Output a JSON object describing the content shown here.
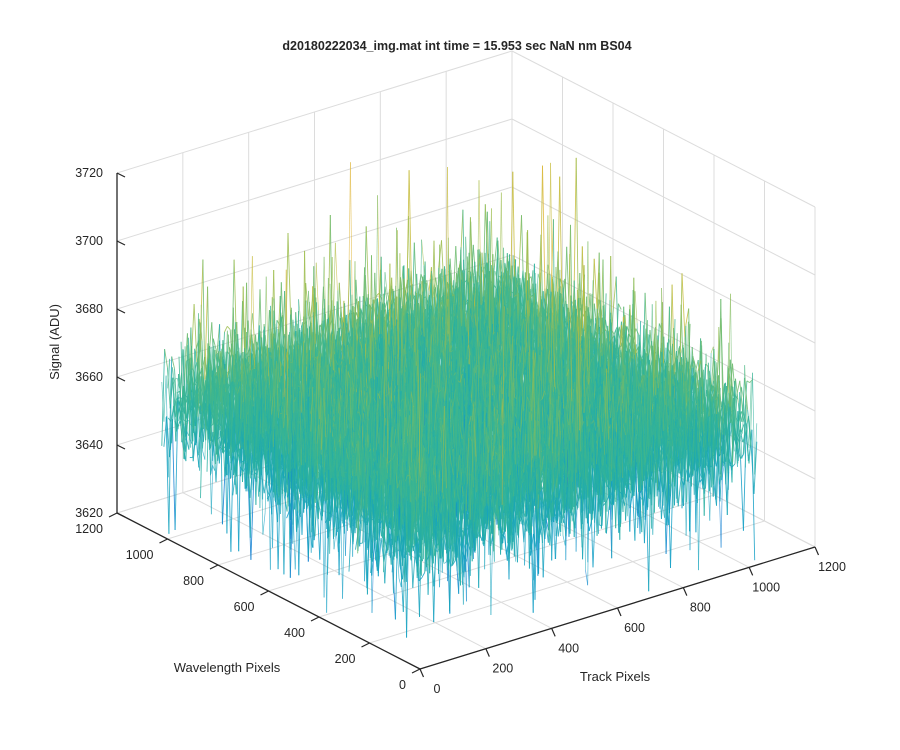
{
  "chart_data": {
    "type": "surface",
    "title": "d20180222034_img.mat int time = 15.953 sec  NaN nm BS04",
    "xlabel": "Track Pixels",
    "ylabel": "Wavelength Pixels",
    "zlabel": "Signal (ADU)",
    "xlim": [
      0,
      1200
    ],
    "ylim": [
      0,
      1200
    ],
    "zlim": [
      3620,
      3720
    ],
    "x_ticks": [
      "0",
      "200",
      "400",
      "600",
      "800",
      "1000",
      "1200"
    ],
    "y_ticks": [
      "0",
      "200",
      "400",
      "600",
      "800",
      "1000",
      "1200"
    ],
    "z_ticks": [
      "3620",
      "3640",
      "3660",
      "3680",
      "3700",
      "3720"
    ],
    "grid": true,
    "colormap": "parula",
    "surface": {
      "x_range": [
        1,
        1024
      ],
      "y_range": [
        1,
        1024
      ],
      "mean_signal": 3660,
      "approx_min": 3630,
      "approx_max": 3700
    }
  },
  "colors": {
    "axes": "#262626",
    "grid": "#dcdcdc",
    "surface_palette": [
      "#0f7fd1",
      "#129fc5",
      "#1aa6b8",
      "#29b0a1",
      "#3fb68e",
      "#6dbb6e",
      "#9dbd4f",
      "#c6bb39",
      "#e0b73a"
    ]
  }
}
